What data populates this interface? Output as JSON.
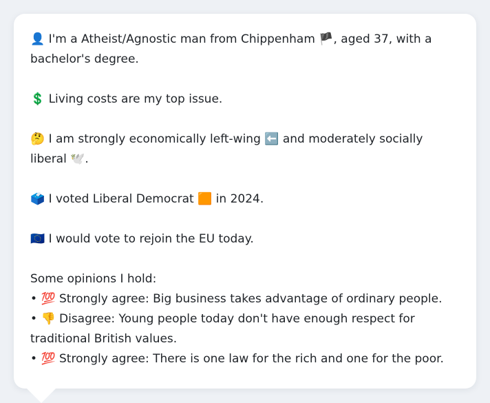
{
  "profile": {
    "intro": {
      "emoji": "👤",
      "text_a": "I'm a Atheist/Agnostic man from Chippenham",
      "flag": "🏴",
      "text_b": ", aged 37, with a bachelor's degree."
    },
    "issue": {
      "emoji": "💲",
      "text": "Living costs are my top issue."
    },
    "ideology": {
      "emoji": "🤔",
      "text_a": "I am strongly economically left-wing",
      "left_emoji": "⬅️",
      "text_b": "and moderately socially liberal",
      "dove_emoji": "🕊️",
      "text_c": "."
    },
    "vote": {
      "emoji": "🗳️",
      "text_a": "I voted Liberal Democrat",
      "party_emoji": "🟧",
      "text_b": "in 2024."
    },
    "eu": {
      "emoji": "🇪🇺",
      "text": "I would vote to rejoin the EU today."
    }
  },
  "opinions": {
    "title": "Some opinions I hold:",
    "bullet": "•",
    "items": [
      {
        "emoji": "💯",
        "text": "Strongly agree: Big business takes advantage of ordinary people."
      },
      {
        "emoji": "👎",
        "text": "Disagree: Young people today don't have enough respect for traditional British values."
      },
      {
        "emoji": "💯",
        "text": "Strongly agree: There is one law for the rich and one for the poor."
      }
    ]
  },
  "colors": {
    "card_background": "#ffffff",
    "page_background": "#eef1f5",
    "text": "#1f2328"
  }
}
